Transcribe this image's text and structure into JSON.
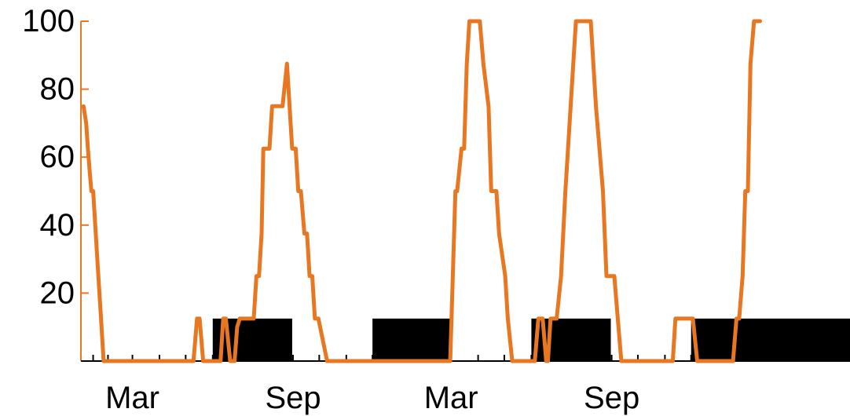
{
  "chart_data": {
    "type": "line",
    "title": "",
    "xlabel": "",
    "ylabel": "",
    "ylim": [
      0,
      100
    ],
    "xlim": [
      "2014-01-01",
      "2016-05-31"
    ],
    "grid": false,
    "legend": "none",
    "y_ticks": [
      20,
      40,
      60,
      80,
      100
    ],
    "x_labels": [
      {
        "date": "2014-03-01",
        "label": "Mar"
      },
      {
        "date": "2014-09-01",
        "label": "Sep"
      },
      {
        "date": "2015-03-01",
        "label": "Mar"
      },
      {
        "date": "2015-09-01",
        "label": "Sep"
      }
    ],
    "minor_ticks": [
      "2014-01-15",
      "2014-02-01",
      "2014-04-01",
      "2014-05-01",
      "2014-06-01",
      "2014-07-01",
      "2014-08-01",
      "2014-10-01",
      "2014-11-01",
      "2014-12-01",
      "2015-01-01",
      "2015-02-01",
      "2015-04-01",
      "2015-05-01",
      "2015-06-01",
      "2015-07-01",
      "2015-08-01",
      "2015-10-01",
      "2015-11-01",
      "2015-12-01",
      "2016-01-01",
      "2016-02-01",
      "2016-03-01",
      "2016-04-01",
      "2016-05-01"
    ],
    "bars": [
      {
        "start": "2014-06-01",
        "end": "2014-08-31",
        "value": 12.5
      },
      {
        "start": "2014-12-01",
        "end": "2015-02-28",
        "value": 12.5
      },
      {
        "start": "2015-06-01",
        "end": "2015-08-31",
        "value": 12.5
      },
      {
        "start": "2015-12-01",
        "end": "2016-05-31",
        "value": 12.5
      }
    ],
    "series": [
      {
        "color": "#e87722",
        "points": [
          [
            "2014-01-04",
            75
          ],
          [
            "2014-01-07",
            70
          ],
          [
            "2014-01-09",
            62.5
          ],
          [
            "2014-01-11",
            56
          ],
          [
            "2014-01-13",
            50
          ],
          [
            "2014-01-15",
            50
          ],
          [
            "2014-01-18",
            37.5
          ],
          [
            "2014-01-21",
            25
          ],
          [
            "2014-01-24",
            12.5
          ],
          [
            "2014-01-27",
            0
          ],
          [
            "2014-05-10",
            0
          ],
          [
            "2014-05-14",
            12.5
          ],
          [
            "2014-05-17",
            12.5
          ],
          [
            "2014-05-21",
            0
          ],
          [
            "2014-06-01",
            0
          ],
          [
            "2014-06-10",
            0
          ],
          [
            "2014-06-13",
            12.5
          ],
          [
            "2014-06-16",
            12.5
          ],
          [
            "2014-06-21",
            0
          ],
          [
            "2014-06-26",
            0
          ],
          [
            "2014-06-29",
            10
          ],
          [
            "2014-07-02",
            12.5
          ],
          [
            "2014-07-18",
            12.5
          ],
          [
            "2014-07-21",
            25
          ],
          [
            "2014-07-24",
            25
          ],
          [
            "2014-07-27",
            37.5
          ],
          [
            "2014-07-29",
            62.5
          ],
          [
            "2014-08-02",
            62.5
          ],
          [
            "2014-08-05",
            62.5
          ],
          [
            "2014-08-08",
            75
          ],
          [
            "2014-08-20",
            75
          ],
          [
            "2014-08-25",
            87.5
          ],
          [
            "2014-08-31",
            62.5
          ],
          [
            "2014-09-04",
            62.5
          ],
          [
            "2014-09-07",
            50
          ],
          [
            "2014-09-10",
            50
          ],
          [
            "2014-09-14",
            37.5
          ],
          [
            "2014-09-17",
            37.5
          ],
          [
            "2014-09-20",
            25
          ],
          [
            "2014-09-23",
            25
          ],
          [
            "2014-09-26",
            12.5
          ],
          [
            "2014-09-30",
            12.5
          ],
          [
            "2014-10-10",
            0
          ],
          [
            "2015-02-28",
            0
          ],
          [
            "2015-03-03",
            25
          ],
          [
            "2015-03-06",
            50
          ],
          [
            "2015-03-08",
            50
          ],
          [
            "2015-03-13",
            62.5
          ],
          [
            "2015-03-16",
            62.5
          ],
          [
            "2015-03-19",
            87.5
          ],
          [
            "2015-03-22",
            100
          ],
          [
            "2015-04-03",
            100
          ],
          [
            "2015-04-07",
            87.5
          ],
          [
            "2015-04-13",
            75
          ],
          [
            "2015-04-16",
            50
          ],
          [
            "2015-04-19",
            50
          ],
          [
            "2015-04-22",
            50
          ],
          [
            "2015-04-25",
            37.5
          ],
          [
            "2015-05-02",
            25
          ],
          [
            "2015-05-05",
            12.5
          ],
          [
            "2015-05-10",
            0
          ],
          [
            "2015-06-05",
            0
          ],
          [
            "2015-06-09",
            12.5
          ],
          [
            "2015-06-14",
            12.5
          ],
          [
            "2015-06-18",
            0
          ],
          [
            "2015-06-20",
            0
          ],
          [
            "2015-06-23",
            12.5
          ],
          [
            "2015-06-30",
            12.5
          ],
          [
            "2015-07-05",
            25
          ],
          [
            "2015-07-10",
            50
          ],
          [
            "2015-07-16",
            75
          ],
          [
            "2015-07-22",
            100
          ],
          [
            "2015-08-08",
            100
          ],
          [
            "2015-08-14",
            75
          ],
          [
            "2015-08-18",
            62.5
          ],
          [
            "2015-08-22",
            50
          ],
          [
            "2015-08-26",
            25
          ],
          [
            "2015-09-04",
            25
          ],
          [
            "2015-09-08",
            12.5
          ],
          [
            "2015-09-12",
            0
          ],
          [
            "2015-11-10",
            0
          ],
          [
            "2015-11-13",
            12.5
          ],
          [
            "2015-11-25",
            12.5
          ],
          [
            "2015-11-30",
            12.5
          ],
          [
            "2015-12-03",
            12.5
          ],
          [
            "2015-12-08",
            0
          ],
          [
            "2016-01-18",
            0
          ],
          [
            "2016-01-22",
            12.5
          ],
          [
            "2016-01-25",
            12.5
          ],
          [
            "2016-01-29",
            25
          ],
          [
            "2016-02-01",
            50
          ],
          [
            "2016-02-04",
            50
          ],
          [
            "2016-02-07",
            87.5
          ],
          [
            "2016-02-11",
            100
          ],
          [
            "2016-02-18",
            100
          ]
        ]
      }
    ]
  }
}
